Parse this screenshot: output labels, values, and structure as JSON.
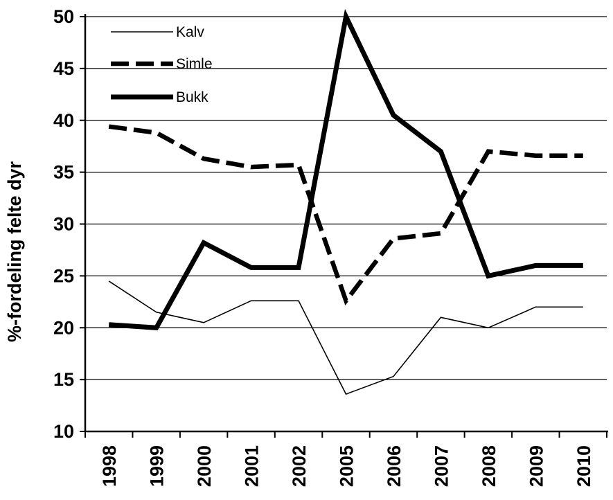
{
  "chart_data": {
    "type": "line",
    "title": "",
    "xlabel": "",
    "ylabel": "%-fordeling felte dyr",
    "categories": [
      "1998",
      "1999",
      "2000",
      "2001",
      "2002",
      "2005",
      "2006",
      "2007",
      "2008",
      "2009",
      "2010"
    ],
    "ylim": [
      10,
      50
    ],
    "yticks": [
      10,
      15,
      20,
      25,
      30,
      35,
      40,
      45,
      50
    ],
    "grid": true,
    "legend_position": "top-left",
    "series": [
      {
        "name": "Kalv",
        "style": "thin",
        "values": [
          24.5,
          21.5,
          20.5,
          22.6,
          22.6,
          13.6,
          15.3,
          21.0,
          20.0,
          22.0,
          22.0
        ]
      },
      {
        "name": "Simle",
        "style": "dashed",
        "values": [
          39.4,
          38.8,
          36.3,
          35.5,
          35.7,
          22.6,
          28.6,
          29.1,
          37.0,
          36.6,
          36.6
        ]
      },
      {
        "name": "Bukk",
        "style": "thick",
        "values": [
          20.3,
          20.0,
          28.2,
          25.8,
          25.8,
          50.0,
          40.5,
          37.0,
          25.0,
          26.0,
          26.0
        ]
      }
    ]
  }
}
